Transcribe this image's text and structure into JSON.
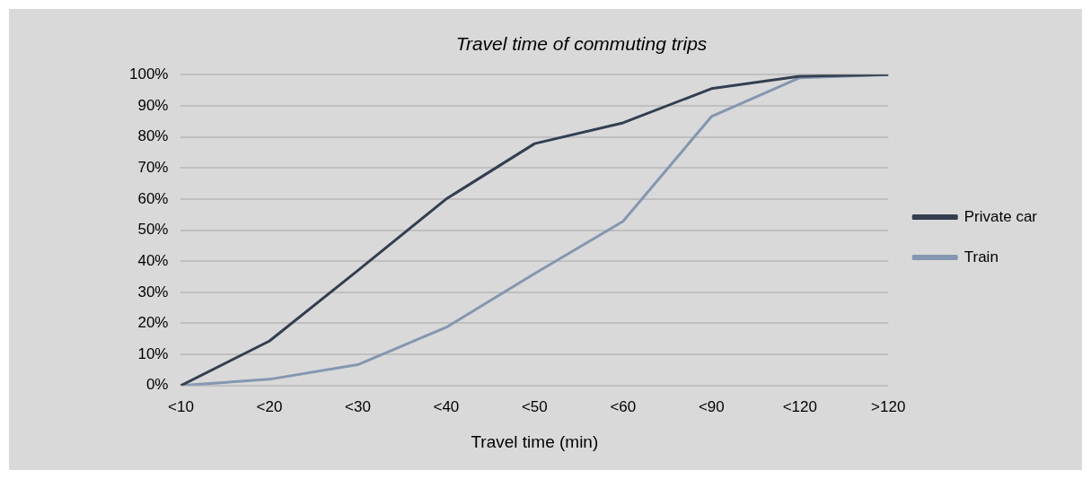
{
  "chart_data": {
    "type": "line",
    "title": "Travel time of commuting trips",
    "xlabel": "Travel time (min)",
    "categories": [
      "<10",
      "<20",
      "<30",
      "<40",
      "<50",
      "<60",
      "<90",
      "<120",
      ">120"
    ],
    "series": [
      {
        "name": "Private car",
        "color": "#333f50",
        "values": [
          0,
          14.3,
          37,
          60,
          77.8,
          84.5,
          95.5,
          99.5,
          100
        ]
      },
      {
        "name": "Train",
        "color": "#8497b0",
        "values": [
          0,
          2,
          6.7,
          18.7,
          36,
          52.8,
          86.5,
          99,
          100
        ]
      }
    ],
    "ylim": [
      0,
      100
    ],
    "yticks": [
      {
        "value": 0,
        "label": "0%"
      },
      {
        "value": 10,
        "label": "10%"
      },
      {
        "value": 20,
        "label": "20%"
      },
      {
        "value": 30,
        "label": "30%"
      },
      {
        "value": 40,
        "label": "40%"
      },
      {
        "value": 50,
        "label": "50%"
      },
      {
        "value": 60,
        "label": "60%"
      },
      {
        "value": 70,
        "label": "70%"
      },
      {
        "value": 80,
        "label": "80%"
      },
      {
        "value": 90,
        "label": "90%"
      },
      {
        "value": 100,
        "label": "100%"
      }
    ],
    "grid": "y",
    "legend": "right",
    "marker": "none",
    "line_style": "solid"
  }
}
